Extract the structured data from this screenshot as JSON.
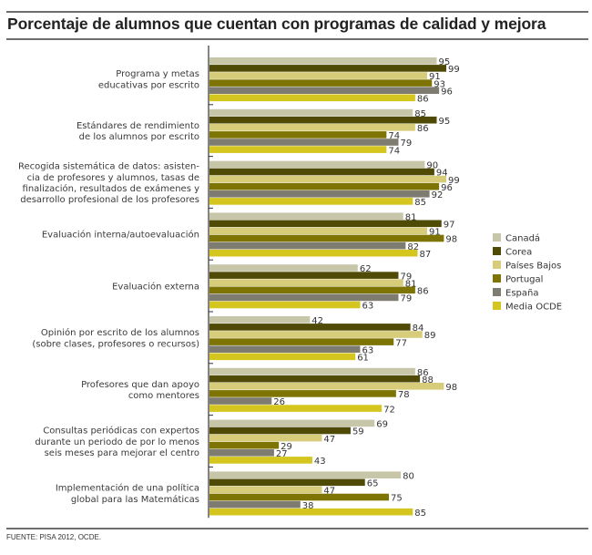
{
  "chart_data": {
    "type": "bar",
    "orientation": "horizontal",
    "title": "Porcentaje de alumnos que cuentan con programas de calidad y mejora",
    "source": "FUENTE: PISA 2012, OCDE.",
    "xlabel": "",
    "ylabel": "",
    "xlim": [
      0,
      100
    ],
    "grid": false,
    "legend_position": "right",
    "categories": [
      [
        "Programa y metas",
        "educativas por escrito"
      ],
      [
        "Estándares de rendimiento",
        "de los alumnos por escrito"
      ],
      [
        "Recogida sistemática de datos: asisten-",
        "cia de profesores y alumnos, tasas de",
        "finalización, resultados de exámenes y",
        "desarrollo profesional de los profesores"
      ],
      [
        "Evaluación interna/autoevaluación"
      ],
      [
        "Evaluación externa"
      ],
      [
        "Opinión por escrito de los alumnos",
        "(sobre clases, profesores o recursos)"
      ],
      [
        "Profesores que dan apoyo",
        "como mentores"
      ],
      [
        "Consultas periódicas con expertos",
        "durante un periodo de por lo menos",
        "seis meses para mejorar el centro"
      ],
      [
        "Implementación de una política",
        "global para las Matemáticas"
      ]
    ],
    "series": [
      {
        "name": "Canadá",
        "color": "#c8c6a8",
        "values": [
          95,
          85,
          90,
          81,
          62,
          42,
          86,
          69,
          80
        ]
      },
      {
        "name": "Corea",
        "color": "#4f4a05",
        "values": [
          99,
          95,
          94,
          97,
          79,
          84,
          88,
          59,
          65
        ]
      },
      {
        "name": "Países Bajos",
        "color": "#d6cc7a",
        "values": [
          91,
          86,
          99,
          91,
          81,
          89,
          98,
          47,
          47
        ]
      },
      {
        "name": "Portugal",
        "color": "#7d7403",
        "values": [
          93,
          74,
          96,
          98,
          86,
          77,
          78,
          29,
          75
        ]
      },
      {
        "name": "España",
        "color": "#7e7c70",
        "values": [
          96,
          79,
          92,
          82,
          79,
          63,
          26,
          27,
          38
        ]
      },
      {
        "name": "Media OCDE",
        "color": "#d4c61e",
        "values": [
          86,
          74,
          85,
          87,
          63,
          61,
          72,
          43,
          85
        ]
      }
    ]
  }
}
